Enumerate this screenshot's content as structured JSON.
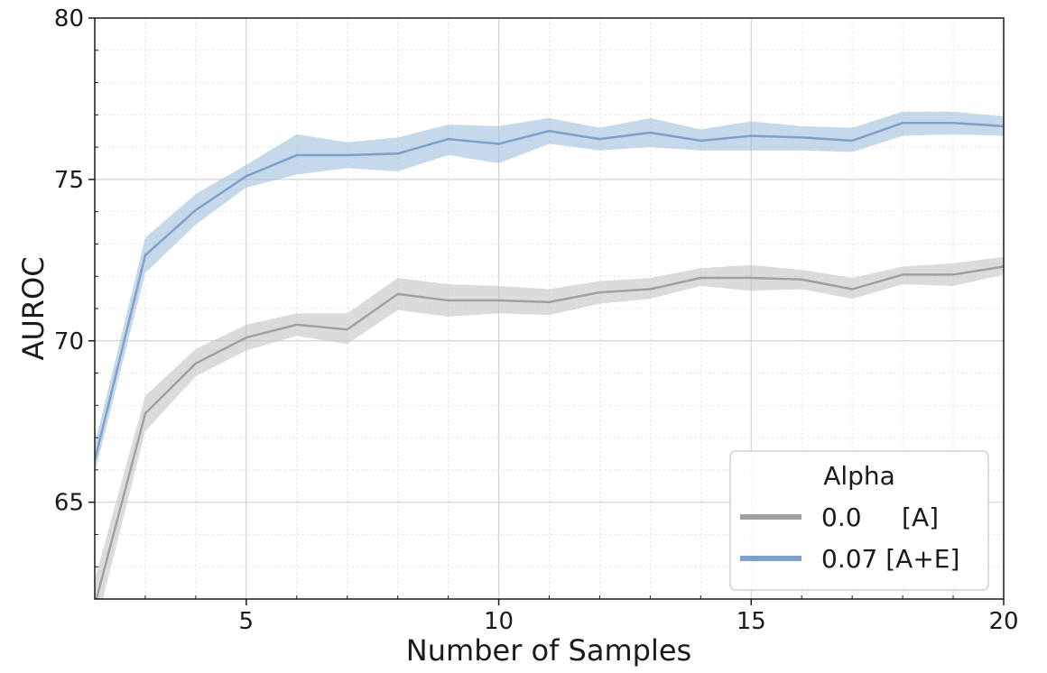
{
  "chart_data": {
    "type": "line",
    "title": "",
    "xlabel": "Number of Samples",
    "ylabel": "AUROC",
    "xlim": [
      2,
      20
    ],
    "ylim": [
      62,
      80
    ],
    "xticks": [
      5,
      10,
      15,
      20
    ],
    "yticks": [
      65,
      70,
      75,
      80
    ],
    "xtick_labels": [
      "5",
      "10",
      "15",
      "20"
    ],
    "ytick_labels": [
      "65",
      "70",
      "75",
      "80"
    ],
    "grid": true,
    "legend": {
      "title": "Alpha",
      "position": "lower-right"
    },
    "x": [
      2,
      3,
      4,
      5,
      6,
      7,
      8,
      9,
      10,
      11,
      12,
      13,
      14,
      15,
      16,
      17,
      18,
      19,
      20
    ],
    "series": [
      {
        "name": "0.0     [A]",
        "color": "#a0a0a0",
        "band_color": "#c8c8c8",
        "values": [
          61.8,
          67.75,
          69.3,
          70.1,
          70.5,
          70.35,
          71.45,
          71.25,
          71.25,
          71.2,
          71.5,
          71.6,
          71.95,
          71.95,
          71.9,
          71.6,
          72.05,
          72.05,
          72.3
        ],
        "lower": [
          61.0,
          67.2,
          68.9,
          69.7,
          70.15,
          69.9,
          70.95,
          70.75,
          70.85,
          70.8,
          71.15,
          71.3,
          71.7,
          71.55,
          71.6,
          71.3,
          71.75,
          71.7,
          72.05
        ],
        "upper": [
          62.6,
          68.3,
          69.75,
          70.5,
          70.85,
          70.85,
          71.95,
          71.75,
          71.7,
          71.6,
          71.85,
          71.95,
          72.25,
          72.35,
          72.2,
          71.95,
          72.3,
          72.4,
          72.6
        ]
      },
      {
        "name": "0.07 [A+E]",
        "color": "#7fa0c8",
        "band_color": "#a8c4e0",
        "values": [
          66.3,
          72.65,
          74.05,
          75.1,
          75.75,
          75.75,
          75.8,
          76.25,
          76.1,
          76.5,
          76.25,
          76.45,
          76.2,
          76.35,
          76.3,
          76.2,
          76.75,
          76.75,
          76.65
        ],
        "lower": [
          65.9,
          72.1,
          73.6,
          74.75,
          75.15,
          75.35,
          75.25,
          75.75,
          75.5,
          76.1,
          75.9,
          76.0,
          75.9,
          75.9,
          75.9,
          75.85,
          76.35,
          76.4,
          76.35
        ],
        "upper": [
          66.8,
          73.2,
          74.55,
          75.45,
          76.4,
          76.15,
          76.3,
          76.7,
          76.65,
          76.9,
          76.6,
          76.9,
          76.55,
          76.8,
          76.65,
          76.6,
          77.1,
          77.1,
          76.95
        ]
      }
    ]
  }
}
